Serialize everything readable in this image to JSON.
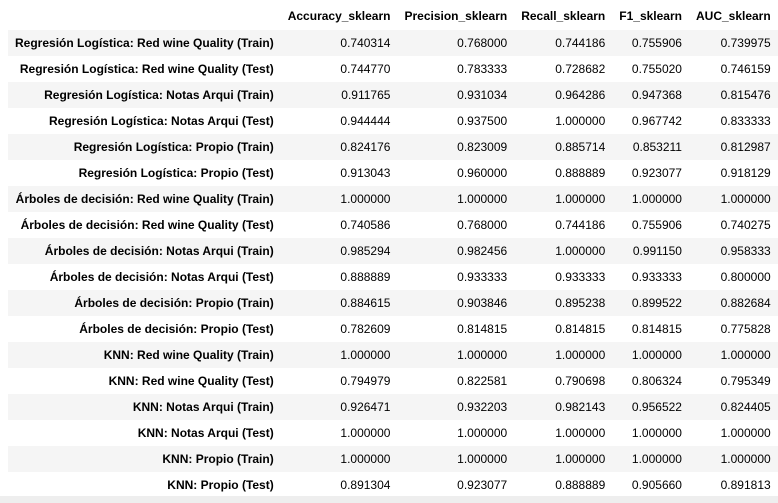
{
  "table": {
    "columns": [
      "Accuracy_sklearn",
      "Precision_sklearn",
      "Recall_sklearn",
      "F1_sklearn",
      "AUC_sklearn"
    ],
    "rows": [
      {
        "label": "Regresión Logística: Red wine Quality (Train)",
        "values": [
          "0.740314",
          "0.768000",
          "0.744186",
          "0.755906",
          "0.739975"
        ]
      },
      {
        "label": "Regresión Logística: Red wine Quality (Test)",
        "values": [
          "0.744770",
          "0.783333",
          "0.728682",
          "0.755020",
          "0.746159"
        ]
      },
      {
        "label": "Regresión Logística: Notas Arqui (Train)",
        "values": [
          "0.911765",
          "0.931034",
          "0.964286",
          "0.947368",
          "0.815476"
        ]
      },
      {
        "label": "Regresión Logística: Notas Arqui (Test)",
        "values": [
          "0.944444",
          "0.937500",
          "1.000000",
          "0.967742",
          "0.833333"
        ]
      },
      {
        "label": "Regresión Logística: Propio (Train)",
        "values": [
          "0.824176",
          "0.823009",
          "0.885714",
          "0.853211",
          "0.812987"
        ]
      },
      {
        "label": "Regresión Logística: Propio (Test)",
        "values": [
          "0.913043",
          "0.960000",
          "0.888889",
          "0.923077",
          "0.918129"
        ]
      },
      {
        "label": "Árboles de decisión: Red wine Quality (Train)",
        "values": [
          "1.000000",
          "1.000000",
          "1.000000",
          "1.000000",
          "1.000000"
        ]
      },
      {
        "label": "Árboles de decisión: Red wine Quality (Test)",
        "values": [
          "0.740586",
          "0.768000",
          "0.744186",
          "0.755906",
          "0.740275"
        ]
      },
      {
        "label": "Árboles de decisión: Notas Arqui (Train)",
        "values": [
          "0.985294",
          "0.982456",
          "1.000000",
          "0.991150",
          "0.958333"
        ]
      },
      {
        "label": "Árboles de decisión: Notas Arqui (Test)",
        "values": [
          "0.888889",
          "0.933333",
          "0.933333",
          "0.933333",
          "0.800000"
        ]
      },
      {
        "label": "Árboles de decisión: Propio (Train)",
        "values": [
          "0.884615",
          "0.903846",
          "0.895238",
          "0.899522",
          "0.882684"
        ]
      },
      {
        "label": "Árboles de decisión: Propio (Test)",
        "values": [
          "0.782609",
          "0.814815",
          "0.814815",
          "0.814815",
          "0.775828"
        ]
      },
      {
        "label": "KNN: Red wine Quality (Train)",
        "values": [
          "1.000000",
          "1.000000",
          "1.000000",
          "1.000000",
          "1.000000"
        ]
      },
      {
        "label": "KNN: Red wine Quality (Test)",
        "values": [
          "0.794979",
          "0.822581",
          "0.790698",
          "0.806324",
          "0.795349"
        ]
      },
      {
        "label": "KNN: Notas Arqui (Train)",
        "values": [
          "0.926471",
          "0.932203",
          "0.982143",
          "0.956522",
          "0.824405"
        ]
      },
      {
        "label": "KNN: Notas Arqui (Test)",
        "values": [
          "1.000000",
          "1.000000",
          "1.000000",
          "1.000000",
          "1.000000"
        ]
      },
      {
        "label": "KNN: Propio (Train)",
        "values": [
          "1.000000",
          "1.000000",
          "1.000000",
          "1.000000",
          "1.000000"
        ]
      },
      {
        "label": "KNN: Propio (Test)",
        "values": [
          "0.891304",
          "0.923077",
          "0.888889",
          "0.905660",
          "0.891813"
        ]
      }
    ]
  },
  "colors": {
    "stripe": "#f5f5f5",
    "background": "#ffffff",
    "text": "#000000"
  }
}
